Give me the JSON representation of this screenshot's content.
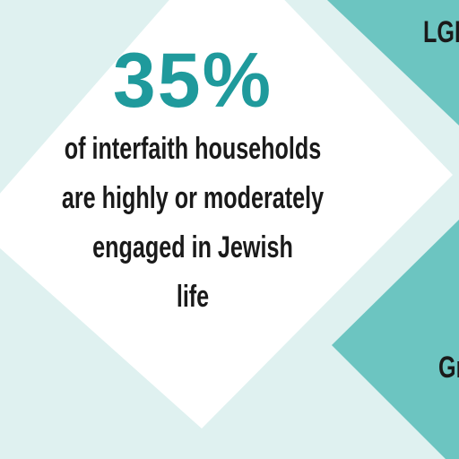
{
  "stat": {
    "value": "35%",
    "lines": [
      "of interfaith households",
      "are highly or moderately",
      "engaged in Jewish",
      "life"
    ]
  },
  "side_labels": [
    "LGB",
    "Gr"
  ]
}
